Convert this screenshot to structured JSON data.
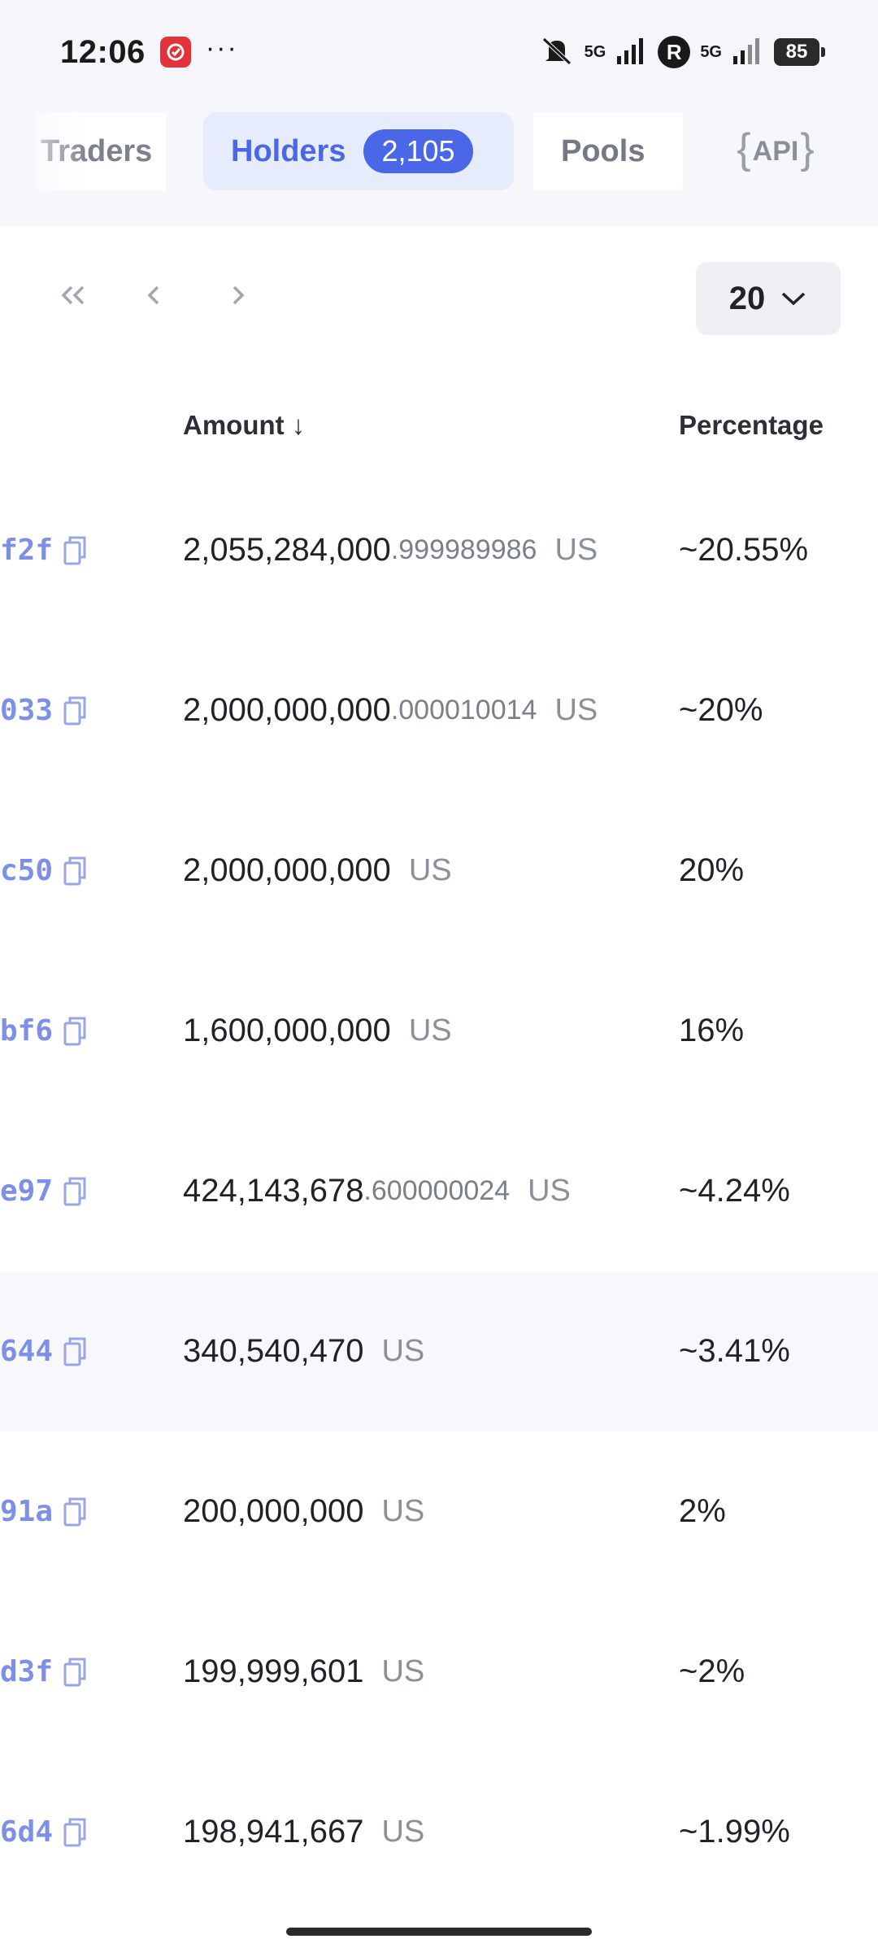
{
  "status_bar": {
    "time": "12:06",
    "dots": "···",
    "network_1": "5G",
    "network_2": "5G",
    "r_badge": "R",
    "battery": "85"
  },
  "tabs": {
    "traders": "Traders",
    "holders": "Holders",
    "holders_count": "2,105",
    "pools": "Pools",
    "api": "API"
  },
  "pagination": {
    "per_page": "20"
  },
  "table": {
    "headers": {
      "amount": "Amount ↓",
      "percentage": "Percentage"
    },
    "rows": [
      {
        "address": "f2f",
        "amount_int": "2,055,284,000",
        "amount_dec": ".999989986",
        "unit": "US",
        "percentage": "~20.55%"
      },
      {
        "address": "033",
        "amount_int": "2,000,000,000",
        "amount_dec": ".000010014",
        "unit": "US",
        "percentage": "~20%"
      },
      {
        "address": "c50",
        "amount_int": "2,000,000,000",
        "amount_dec": "",
        "unit": "US",
        "percentage": "20%"
      },
      {
        "address": "bf6",
        "amount_int": "1,600,000,000",
        "amount_dec": "",
        "unit": "US",
        "percentage": "16%"
      },
      {
        "address": "e97",
        "amount_int": "424,143,678",
        "amount_dec": ".600000024",
        "unit": "US",
        "percentage": "~4.24%"
      },
      {
        "address": "644",
        "amount_int": "340,540,470",
        "amount_dec": "",
        "unit": "US",
        "percentage": "~3.41%"
      },
      {
        "address": "91a",
        "amount_int": "200,000,000",
        "amount_dec": "",
        "unit": "US",
        "percentage": "2%"
      },
      {
        "address": "d3f",
        "amount_int": "199,999,601",
        "amount_dec": "",
        "unit": "US",
        "percentage": "~2%"
      },
      {
        "address": "6d4",
        "amount_int": "198,941,667",
        "amount_dec": "",
        "unit": "US",
        "percentage": "~1.99%"
      }
    ]
  },
  "colors": {
    "accent": "#4a67e8",
    "address": "#7d8fe6",
    "highlight_row": "#f8f8fc"
  },
  "icons": [
    "app-icon",
    "mute-icon",
    "signal-icon",
    "copy-icon",
    "first-page-icon",
    "prev-page-icon",
    "next-page-icon",
    "chevron-down-icon"
  ]
}
